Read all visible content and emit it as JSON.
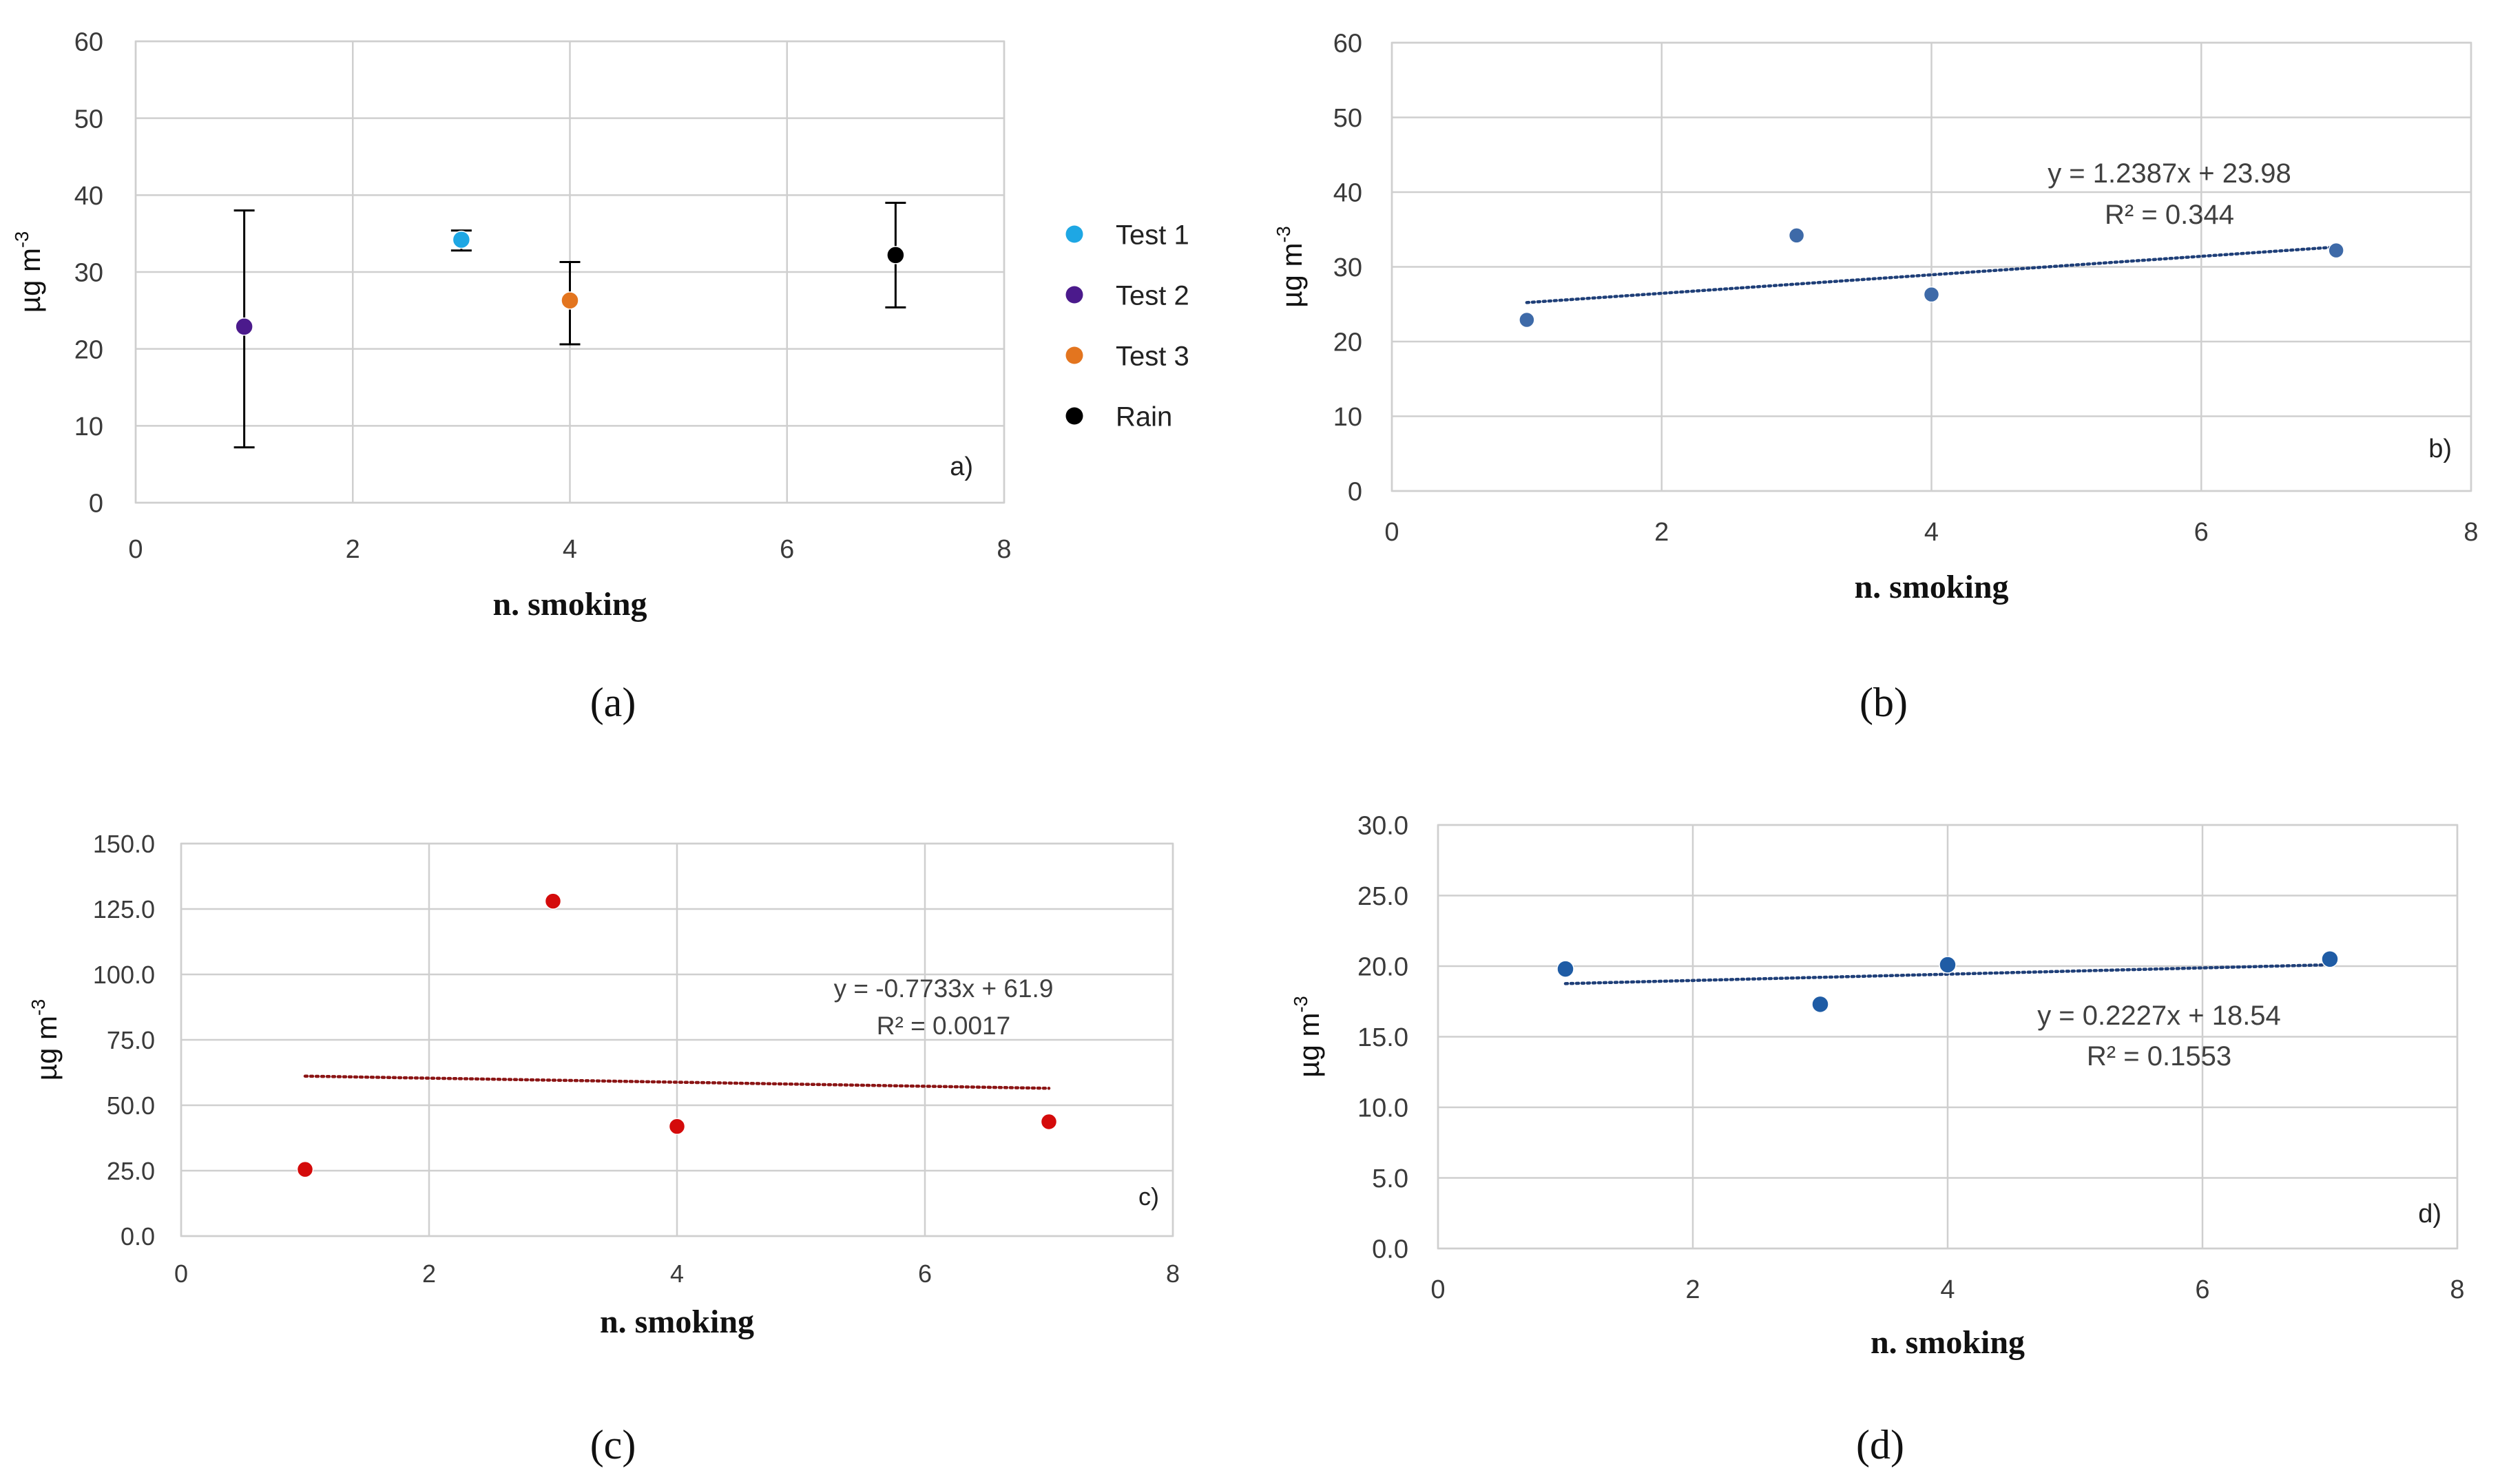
{
  "chart_data": [
    {
      "id": "a",
      "type": "scatter",
      "caption": "(a)",
      "corner_label": "a)",
      "xlabel": "n. smoking",
      "ylabel_base": "µg m",
      "ylabel_sup": "-3",
      "xlim": [
        0,
        8
      ],
      "ylim": [
        0,
        60
      ],
      "x_ticks": [
        "0",
        "2",
        "4",
        "6",
        "8"
      ],
      "y_ticks": [
        "0",
        "10",
        "20",
        "30",
        "40",
        "50",
        "60"
      ],
      "series": [
        {
          "name": "Test 1",
          "color": "#1ea7e4",
          "points": [
            {
              "x": 3,
              "y": 34.2,
              "err_low": 32.8,
              "err_high": 35.4
            }
          ]
        },
        {
          "name": "Test 2",
          "color": "#4b1a8c",
          "points": [
            {
              "x": 1,
              "y": 22.9,
              "err_low": 7.2,
              "err_high": 38.0
            }
          ]
        },
        {
          "name": "Test 3",
          "color": "#e3751f",
          "points": [
            {
              "x": 4,
              "y": 26.3,
              "err_low": 20.6,
              "err_high": 31.3
            }
          ]
        },
        {
          "name": "Rain",
          "color": "#000000",
          "points": [
            {
              "x": 7,
              "y": 32.2,
              "err_low": 25.4,
              "err_high": 39.0
            }
          ]
        }
      ],
      "legend": [
        "Test 1",
        "Test 2",
        "Test 3",
        "Rain"
      ]
    },
    {
      "id": "b",
      "type": "scatter",
      "caption": "(b)",
      "corner_label": "b)",
      "xlabel": "n. smoking",
      "ylabel_base": "µg m",
      "ylabel_sup": "-3",
      "xlim": [
        0,
        8
      ],
      "ylim": [
        0,
        60
      ],
      "x_ticks": [
        "0",
        "2",
        "4",
        "6",
        "8"
      ],
      "y_ticks": [
        "0",
        "10",
        "20",
        "30",
        "40",
        "50",
        "60"
      ],
      "point_color": "#3e6aa8",
      "trend_color": "#1f3f78",
      "points": [
        {
          "x": 1,
          "y": 22.9
        },
        {
          "x": 3,
          "y": 34.2
        },
        {
          "x": 4,
          "y": 26.3
        },
        {
          "x": 7,
          "y": 32.2
        }
      ],
      "trendline": {
        "slope": 1.2387,
        "intercept": 23.98,
        "x_range": [
          1,
          7
        ],
        "equation": "y = 1.2387x + 23.98",
        "r2": "R² = 0.344"
      }
    },
    {
      "id": "c",
      "type": "scatter",
      "caption": "(c)",
      "corner_label": "c)",
      "xlabel": "n. smoking",
      "ylabel_base": "µg m",
      "ylabel_sup": "-3",
      "xlim": [
        0,
        8
      ],
      "ylim": [
        0,
        150
      ],
      "x_ticks": [
        "0",
        "2",
        "4",
        "6",
        "8"
      ],
      "y_ticks": [
        "0.0",
        "25.0",
        "50.0",
        "75.0",
        "100.0",
        "125.0",
        "150.0"
      ],
      "point_color": "#d40b0b",
      "trend_color": "#8b1515",
      "points": [
        {
          "x": 1,
          "y": 25.5
        },
        {
          "x": 3,
          "y": 128.0
        },
        {
          "x": 4,
          "y": 41.9
        },
        {
          "x": 7,
          "y": 43.7
        }
      ],
      "trendline": {
        "slope": -0.7733,
        "intercept": 61.9,
        "x_range": [
          1,
          7
        ],
        "equation": "y = -0.7733x + 61.9",
        "r2": "R² = 0.0017"
      }
    },
    {
      "id": "d",
      "type": "scatter",
      "caption": "(d)",
      "corner_label": "d)",
      "xlabel": "n. smoking",
      "ylabel_base": "µg m",
      "ylabel_sup": "-3",
      "xlim": [
        0,
        8
      ],
      "ylim": [
        0,
        30
      ],
      "x_ticks": [
        "0",
        "2",
        "4",
        "6",
        "8"
      ],
      "y_ticks": [
        "0.0",
        "5.0",
        "10.0",
        "15.0",
        "20.0",
        "25.0",
        "30.0"
      ],
      "point_color": "#1f5ca5",
      "trend_color": "#1f3f78",
      "points": [
        {
          "x": 1,
          "y": 19.8
        },
        {
          "x": 3,
          "y": 17.3
        },
        {
          "x": 4,
          "y": 20.1
        },
        {
          "x": 7,
          "y": 20.5
        }
      ],
      "trendline": {
        "slope": 0.2227,
        "intercept": 18.54,
        "x_range": [
          1,
          7
        ],
        "equation": "y = 0.2227x + 18.54",
        "r2": "R² = 0.1553"
      }
    }
  ]
}
